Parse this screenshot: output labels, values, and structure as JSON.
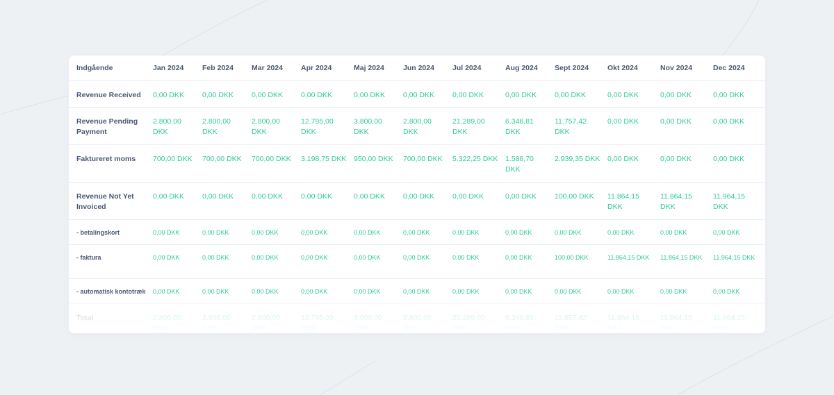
{
  "table": {
    "header_label": "Indgående",
    "months": [
      "Jan 2024",
      "Feb 2024",
      "Mar 2024",
      "Apr 2024",
      "Maj 2024",
      "Jun 2024",
      "Jul 2024",
      "Aug 2024",
      "Sept 2024",
      "Okt 2024",
      "Nov 2024",
      "Dec 2024"
    ],
    "rows": [
      {
        "label": "Revenue Received",
        "values": [
          "0,00 DKK",
          "0,00 DKK",
          "0,00 DKK",
          "0,00 DKK",
          "0,00 DKK",
          "0,00 DKK",
          "0,00 DKK",
          "0,00 DKK",
          "0,00 DKK",
          "0,00 DKK",
          "0,00 DKK",
          "0,00 DKK"
        ]
      },
      {
        "label": "Revenue Pending Payment",
        "values": [
          "2.800,00 DKK",
          "2.800,00 DKK",
          "2.800,00 DKK",
          "12.795,00 DKK",
          "3.800,00 DKK",
          "2.800,00 DKK",
          "21.289,00 DKK",
          "6.346,81 DKK",
          "11.757,42 DKK",
          "0,00 DKK",
          "0,00 DKK",
          "0,00 DKK"
        ]
      },
      {
        "label": "Faktureret moms",
        "values": [
          "700,00 DKK",
          "700,00 DKK",
          "700,00 DKK",
          "3.198,75 DKK",
          "950,00 DKK",
          "700,00 DKK",
          "5.322,25 DKK",
          "1.586,70 DKK",
          "2.939,35 DKK",
          "0,00 DKK",
          "0,00 DKK",
          "0,00 DKK"
        ]
      },
      {
        "label": "Revenue Not Yet Invoiced",
        "values": [
          "0,00 DKK",
          "0,00 DKK",
          "0,00 DKK",
          "0,00 DKK",
          "0,00 DKK",
          "0,00 DKK",
          "0,00 DKK",
          "0,00 DKK",
          "100,00 DKK",
          "11.864,15 DKK",
          "11.864,15 DKK",
          "11.964,15 DKK"
        ]
      },
      {
        "label": "- betalingskort",
        "values": [
          "0,00 DKK",
          "0,00 DKK",
          "0,00 DKK",
          "0,00 DKK",
          "0,00 DKK",
          "0,00 DKK",
          "0,00 DKK",
          "0,00 DKK",
          "0,00 DKK",
          "0,00 DKK",
          "0,00 DKK",
          "0,00 DKK"
        ]
      },
      {
        "label": "- faktura",
        "values": [
          "0,00 DKK",
          "0,00 DKK",
          "0,00 DKK",
          "0,00 DKK",
          "0,00 DKK",
          "0,00 DKK",
          "0,00 DKK",
          "0,00 DKK",
          "100,00 DKK",
          "11.864,15 DKK",
          "11.864,15 DKK",
          "11.964,15 DKK"
        ]
      },
      {
        "label": "- automatisk kontotræk",
        "values": [
          "0,00 DKK",
          "0,00 DKK",
          "0,00 DKK",
          "0,00 DKK",
          "0,00 DKK",
          "0,00 DKK",
          "0,00 DKK",
          "0,00 DKK",
          "0,00 DKK",
          "0,00 DKK",
          "0,00 DKK",
          "0,00 DKK"
        ]
      },
      {
        "label": "Total",
        "values": [
          "2.800,00 DKK",
          "2.800,00 DKK",
          "2.800,00 DKK",
          "12.795,00 DKK",
          "3.800,00 DKK",
          "2.800,00 DKK",
          "21.289,00 DKK",
          "6.346,81 DKK",
          "11.857,42 DKK",
          "11.864,15 DKK",
          "11.864,15 DKK",
          "11.964,15 DKK"
        ]
      }
    ]
  },
  "colors": {
    "background": "#eef1f4",
    "card": "#ffffff",
    "label_text": "#4a5873",
    "value_text": "#2fcc93",
    "divider": "#e9edf1"
  }
}
